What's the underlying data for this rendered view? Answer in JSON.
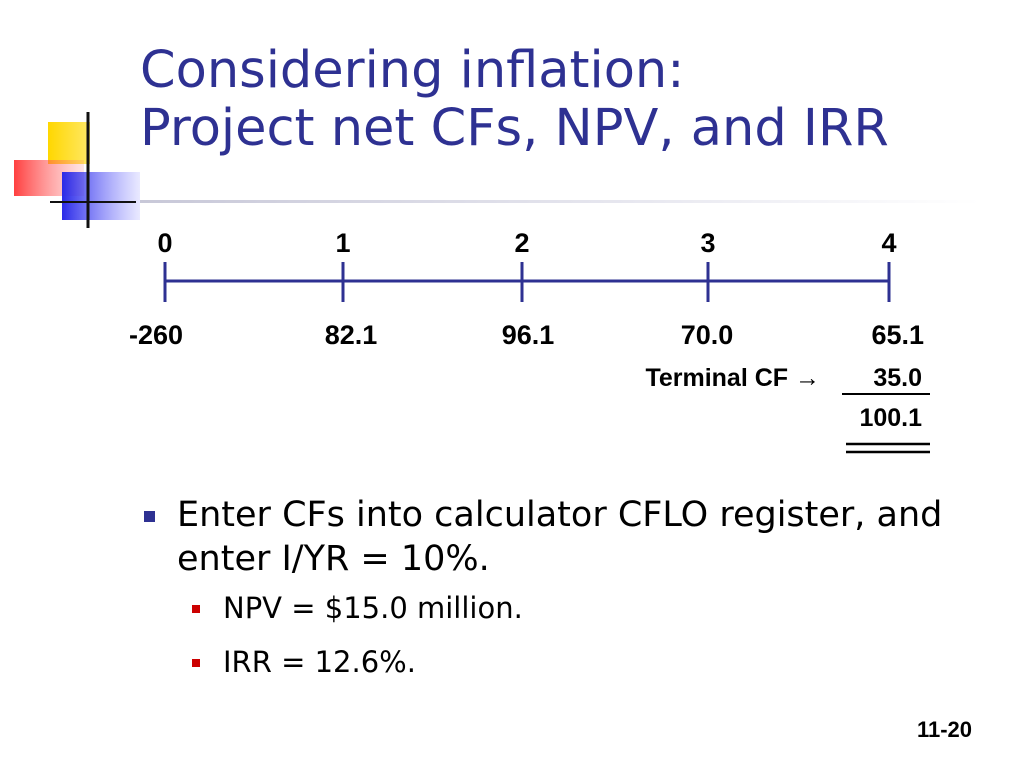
{
  "title": {
    "line1": "Considering inflation:",
    "line2": "Project net CFs, NPV, and IRR"
  },
  "timeline": {
    "periods": [
      "0",
      "1",
      "2",
      "3",
      "4"
    ],
    "cash_flows": [
      "-260",
      "82.1",
      "96.1",
      "70.0",
      "65.1"
    ],
    "terminal_label": "Terminal CF →",
    "terminal_value": "35.0",
    "total_value": "100.1"
  },
  "bullets": {
    "main": "Enter CFs into calculator CFLO register, and enter I/YR = 10%.",
    "sub": [
      "NPV = $15.0 million.",
      "IRR = 12.6%."
    ]
  },
  "slide_number": "11-20",
  "colors": {
    "title": "#2e3192",
    "timeline": "#2e3192",
    "bullet_main": "#2e3192",
    "bullet_sub": "#cc0000"
  }
}
